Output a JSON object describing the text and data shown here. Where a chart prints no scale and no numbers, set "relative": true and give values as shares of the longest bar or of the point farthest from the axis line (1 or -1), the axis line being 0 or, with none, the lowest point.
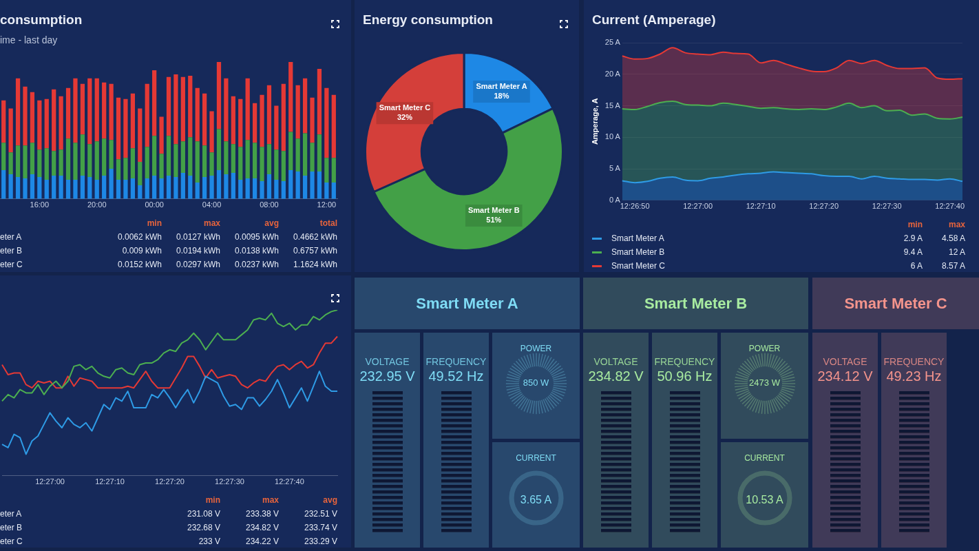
{
  "chart_data": [
    {
      "type": "bar",
      "title": "consumption",
      "subtitle": "ime - last day",
      "stacked": true,
      "relative": true,
      "categories": [
        null,
        null,
        null,
        null,
        null,
        "16:00",
        null,
        null,
        null,
        null,
        null,
        null,
        null,
        "20:00",
        null,
        null,
        null,
        null,
        null,
        null,
        null,
        "00:00",
        null,
        null,
        null,
        null,
        null,
        null,
        null,
        "04:00",
        null,
        null,
        null,
        null,
        null,
        null,
        null,
        "08:00",
        null,
        null,
        null,
        null,
        null,
        null,
        null,
        "12:00",
        null
      ],
      "series": [
        {
          "color": "#1e88e5",
          "values": [
            0.21,
            0.18,
            0.16,
            0.15,
            0.18,
            0.16,
            0.14,
            0.17,
            0.17,
            0.14,
            0.14,
            0.17,
            0.16,
            0.14,
            0.17,
            0.22,
            0.14,
            0.14,
            0.15,
            0.1,
            0.15,
            0.17,
            0.15,
            0.17,
            0.16,
            0.19,
            0.17,
            0.12,
            0.16,
            0.17,
            0.21,
            0.18,
            0.19,
            0.14,
            0.15,
            0.15,
            0.13,
            0.18,
            0.14,
            0.13,
            0.21,
            0.2,
            0.17,
            0.2,
            0.2,
            0.12,
            0.12
          ]
        },
        {
          "color": "#43a047",
          "values": [
            0.2,
            0.16,
            0.23,
            0.24,
            0.23,
            0.2,
            0.23,
            0.18,
            0.19,
            0.3,
            0.27,
            0.3,
            0.24,
            0.28,
            0.27,
            0.21,
            0.15,
            0.16,
            0.22,
            0.17,
            0.23,
            0.29,
            0.18,
            0.29,
            0.24,
            0.23,
            0.28,
            0.3,
            0.23,
            0.17,
            0.3,
            0.24,
            0.21,
            0.24,
            0.28,
            0.26,
            0.25,
            0.22,
            0.22,
            0.22,
            0.28,
            0.24,
            0.31,
            0.21,
            0.27,
            0.18,
            0.18
          ]
        },
        {
          "color": "#e53935",
          "values": [
            0.31,
            0.32,
            0.49,
            0.43,
            0.37,
            0.36,
            0.36,
            0.45,
            0.39,
            0.37,
            0.47,
            0.37,
            0.48,
            0.46,
            0.41,
            0.41,
            0.45,
            0.43,
            0.4,
            0.39,
            0.46,
            0.48,
            0.27,
            0.43,
            0.51,
            0.47,
            0.45,
            0.39,
            0.38,
            0.3,
            0.49,
            0.46,
            0.35,
            0.35,
            0.45,
            0.29,
            0.38,
            0.43,
            0.32,
            0.49,
            0.51,
            0.39,
            0.4,
            0.33,
            0.48,
            0.51,
            0.46
          ]
        }
      ],
      "annotations": [
        "\tmin\tmax\tavg\ttotal",
        "eter A\t0.0062 kWh\t0.0127 kWh\t0.0095 kWh\t0.4662 kWh",
        "eter B\t0.009 kWh\t0.0194 kWh\t0.0138 kWh\t0.6757 kWh",
        "eter C\t0.0152 kWh\t0.0297 kWh\t0.0237 kWh\t1.1624 kWh"
      ]
    },
    {
      "type": "donut",
      "title": "Energy consumption",
      "categories": [
        "Smart Meter A",
        "Smart Meter B",
        "Smart Meter C"
      ],
      "values": [
        18,
        51,
        32
      ],
      "colors": [
        "#1e88e5",
        "#43a047",
        "#d43f3a"
      ],
      "value_labels": [
        "18%",
        "51%",
        "32%"
      ]
    },
    {
      "type": "area",
      "title": "Current (Amperage)",
      "ylabel": "Amperage, A",
      "stacked": true,
      "grid": "y",
      "legend": "bottom",
      "categories": [
        null,
        "12:26:50",
        null,
        null,
        null,
        null,
        "12:27:00",
        null,
        null,
        null,
        null,
        "12:27:10",
        null,
        null,
        null,
        null,
        "12:27:20",
        null,
        null,
        null,
        null,
        "12:27:30",
        null,
        null,
        null,
        null,
        "12:27:40",
        null
      ],
      "ylim": [
        0,
        25
      ],
      "yticks": [
        {
          "value": 0,
          "label": "0 A"
        },
        {
          "value": 5,
          "label": "5 A"
        },
        {
          "value": 10,
          "label": "10 A"
        },
        {
          "value": 15,
          "label": "15 A"
        },
        {
          "value": 20,
          "label": "20 A"
        },
        {
          "value": 25,
          "label": "25 A"
        }
      ],
      "series": [
        {
          "name": "Smart Meter A",
          "color": "#2e9be6",
          "values": [
            3.1,
            2.8,
            3.0,
            3.5,
            3.7,
            3.2,
            3.1,
            3.5,
            3.7,
            4.0,
            4.2,
            4.3,
            4.5,
            4.4,
            4.3,
            4.2,
            3.9,
            3.8,
            3.8,
            3.4,
            3.8,
            3.5,
            3.4,
            3.3,
            3.3,
            3.2,
            3.4,
            3.0
          ]
        },
        {
          "name": "Smart Meter B",
          "color": "#4caf50",
          "values": [
            11.4,
            11.6,
            11.9,
            12.0,
            12.0,
            12.0,
            12.0,
            11.5,
            11.7,
            11.2,
            10.7,
            10.3,
            10.2,
            10.1,
            10.1,
            10.3,
            10.5,
            11.0,
            11.6,
            11.3,
            11.2,
            10.7,
            10.9,
            10.2,
            10.4,
            9.8,
            9.5,
            10.2
          ]
        },
        {
          "name": "Smart Meter C",
          "color": "#e53935",
          "values": [
            8.4,
            8.0,
            7.6,
            7.7,
            8.5,
            8.2,
            8.1,
            8.1,
            8.1,
            8.1,
            8.3,
            7.2,
            7.5,
            7.1,
            6.6,
            6.0,
            6.0,
            6.2,
            6.8,
            7.0,
            7.2,
            7.2,
            6.6,
            7.4,
            7.3,
            6.4,
            6.3,
            6.1
          ]
        }
      ],
      "annotations": [
        "min\tmax",
        "2.9 A\t4.58 A",
        "9.4 A\t12 A",
        "6 A\t8.57 A"
      ]
    },
    {
      "type": "line",
      "relative": true,
      "categories": [
        null,
        null,
        null,
        null,
        null,
        null,
        null,
        null,
        "12:27:00",
        null,
        null,
        null,
        null,
        null,
        null,
        null,
        null,
        null,
        "12:27:10",
        null,
        null,
        null,
        null,
        null,
        null,
        null,
        null,
        null,
        "12:27:20",
        null,
        null,
        null,
        null,
        null,
        null,
        null,
        null,
        null,
        "12:27:30",
        null,
        null,
        null,
        null,
        null,
        null,
        null,
        null,
        null,
        "12:27:40",
        null,
        null,
        null,
        null,
        null,
        null,
        null,
        null
      ],
      "series": [
        {
          "color": "#2e9be6",
          "values": [
            0.19,
            0.17,
            0.25,
            0.23,
            0.13,
            0.21,
            0.24,
            0.31,
            0.38,
            0.33,
            0.29,
            0.35,
            0.31,
            0.29,
            0.32,
            0.27,
            0.35,
            0.43,
            0.4,
            0.47,
            0.45,
            0.51,
            0.41,
            0.41,
            0.41,
            0.49,
            0.47,
            0.52,
            0.47,
            0.41,
            0.47,
            0.52,
            0.44,
            0.51,
            0.6,
            0.58,
            0.56,
            0.48,
            0.42,
            0.43,
            0.4,
            0.47,
            0.47,
            0.42,
            0.46,
            0.51,
            0.58,
            0.5,
            0.41,
            0.47,
            0.53,
            0.45,
            0.54,
            0.63,
            0.54,
            0.51,
            0.51
          ]
        },
        {
          "color": "#4caf50",
          "values": [
            0.45,
            0.49,
            0.47,
            0.52,
            0.5,
            0.5,
            0.55,
            0.49,
            0.54,
            0.57,
            0.53,
            0.57,
            0.66,
            0.67,
            0.64,
            0.66,
            0.62,
            0.6,
            0.59,
            0.64,
            0.65,
            0.62,
            0.61,
            0.67,
            0.68,
            0.68,
            0.7,
            0.74,
            0.76,
            0.75,
            0.8,
            0.82,
            0.86,
            0.82,
            0.76,
            0.81,
            0.86,
            0.82,
            0.82,
            0.82,
            0.85,
            0.88,
            0.94,
            0.95,
            0.94,
            0.98,
            0.92,
            0.9,
            0.92,
            0.88,
            0.91,
            0.91,
            0.96,
            0.94,
            0.97,
            0.99,
            1
          ]
        },
        {
          "color": "#e53935",
          "values": [
            0.67,
            0.61,
            0.62,
            0.62,
            0.55,
            0.53,
            0.57,
            0.56,
            0.57,
            0.53,
            0.53,
            0.6,
            0.54,
            0.59,
            0.58,
            0.57,
            0.53,
            0.53,
            0.53,
            0.53,
            0.53,
            0.54,
            0.53,
            0.58,
            0.63,
            0.57,
            0.53,
            0.53,
            0.53,
            0.59,
            0.65,
            0.72,
            0.72,
            0.66,
            0.59,
            0.64,
            0.59,
            0.6,
            0.61,
            0.6,
            0.55,
            0.53,
            0.56,
            0.58,
            0.57,
            0.62,
            0.66,
            0.67,
            0.64,
            0.67,
            0.69,
            0.65,
            0.67,
            0.74,
            0.8,
            0.8,
            0.84
          ]
        }
      ],
      "annotations": [
        "\tmin\tmax\tavg",
        "eter A\t231.08 V\t233.38 V\t232.51 V",
        "eter B\t232.68 V\t234.82 V\t233.74 V",
        "eter C\t233 V\t234.22 V\t233.29 V"
      ]
    },
    {
      "type": "other",
      "title": "Smart Meter A",
      "color": "#7fdcf5",
      "annotations": [
        "VOLTAGE",
        "232.95 V",
        "FREQUENCY",
        "49.52 Hz",
        "POWER",
        "850 W",
        "CURRENT",
        "3.65 A"
      ]
    },
    {
      "type": "other",
      "title": "Smart Meter B",
      "color": "#a8eba0",
      "annotations": [
        "VOLTAGE",
        "234.82 V",
        "FREQUENCY",
        "50.96 Hz",
        "POWER",
        "2473 W",
        "CURRENT",
        "10.53 A"
      ]
    },
    {
      "type": "other",
      "title": "Smart Meter C",
      "color": "#f4948c",
      "annotations": [
        "VOLTAGE",
        "234.12 V",
        "FREQUENCY",
        "49.23 Hz"
      ]
    }
  ]
}
